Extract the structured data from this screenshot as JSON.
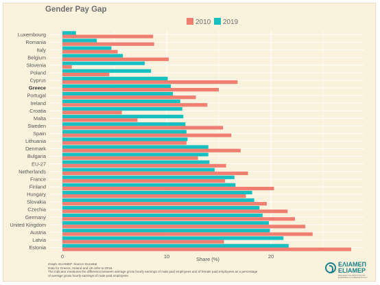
{
  "chart_data": {
    "type": "bar",
    "orientation": "horizontal",
    "title": "Gender Pay Gap",
    "xlabel": "Share (%)",
    "xlim": [
      0,
      29.5
    ],
    "xticks": [
      0,
      10,
      20
    ],
    "grid": true,
    "legend_position": "top",
    "categories": [
      "Luxembourg",
      "Romania",
      "Italy",
      "Belgium",
      "Slovenia",
      "Poland",
      "Cyprus",
      "Greece",
      "Portugal",
      "Ireland",
      "Croatia",
      "Malta",
      "Sweden",
      "Spain",
      "Lithuania",
      "Denmark",
      "Bulgaria",
      "EU-27",
      "Netherlands",
      "France",
      "Finland",
      "Hungary",
      "Slovakia",
      "Czechia",
      "Germany",
      "United Kingdom",
      "Austria",
      "Latvia",
      "Estonia"
    ],
    "highlight_category": "Greece",
    "series": [
      {
        "name": "2010",
        "color": "#f07f72",
        "values": [
          8.7,
          8.8,
          5.3,
          10.2,
          0.9,
          4.5,
          16.8,
          15.0,
          12.8,
          13.9,
          5.7,
          7.2,
          15.4,
          16.2,
          11.9,
          17.1,
          13.0,
          15.7,
          17.8,
          15.6,
          20.3,
          17.6,
          19.6,
          21.6,
          22.3,
          23.3,
          24.0,
          15.5,
          27.7
        ]
      },
      {
        "name": "2019",
        "color": "#18bfc0",
        "values": [
          1.3,
          3.3,
          4.7,
          5.8,
          7.9,
          8.5,
          10.1,
          10.4,
          10.6,
          11.3,
          11.5,
          11.6,
          11.8,
          11.9,
          12.0,
          14.0,
          14.0,
          14.1,
          14.6,
          16.5,
          16.6,
          18.2,
          18.4,
          18.9,
          19.2,
          19.8,
          19.9,
          21.2,
          21.7
        ]
      }
    ]
  },
  "caption": {
    "line1": "Graph: ELIAMEP. Source: Eurostat",
    "line2": "Data for Greece, Ireland and UK refer to 2018.",
    "line3": "The indicator measures the difference between average gross hourly earnings of male paid employees and of female paid employees as a percentage",
    "line4": "of average gross hourly earnings of male paid employees."
  },
  "logo": {
    "text_greek": "ΕΛΙΑΜΕΠ",
    "text_latin": "ELIAMEP",
    "subtitle": "HELLENIC FOUNDATION FOR EUROPEAN & FOREIGN POLICY"
  },
  "colors": {
    "background": "#fbf2dd",
    "grid": "#ffffff",
    "bar_2010": "#f07f72",
    "bar_2019": "#18bfc0"
  }
}
